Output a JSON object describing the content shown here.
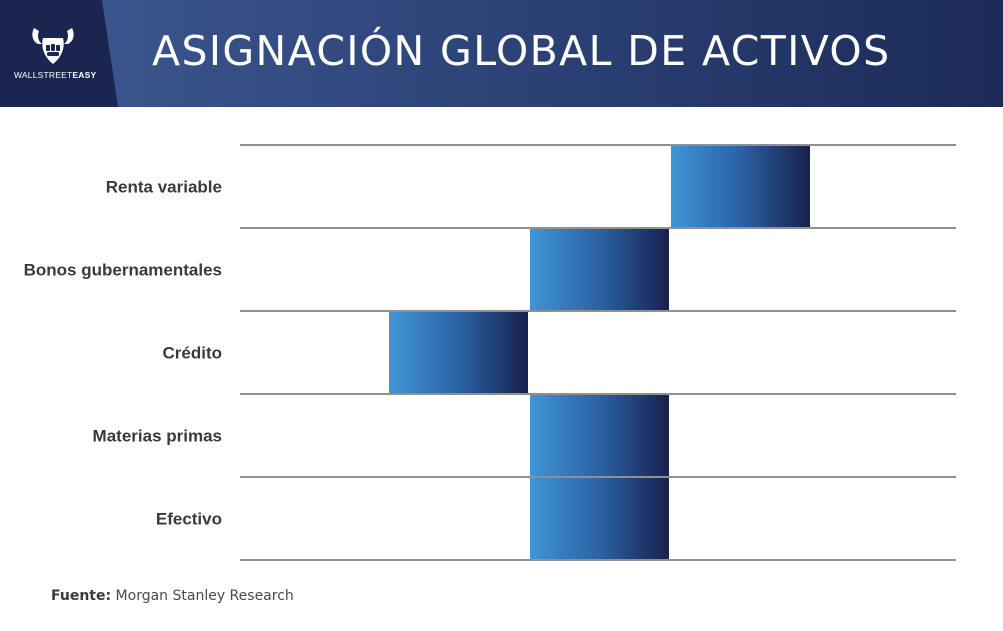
{
  "header": {
    "title": "ASIGNACIÓN GLOBAL DE ACTIVOS",
    "logo_text_regular": "WALLSTREET",
    "logo_text_bold": "EASY",
    "logo_icon": "bull-head-fist-icon"
  },
  "colors": {
    "header_left": "#3d5a92",
    "header_right": "#1c2b57",
    "logo_panel": "#1a2550",
    "bar_light": "#3f95d6",
    "bar_dark": "#17214d",
    "gridline": "#6b6b6b",
    "label_text": "#3a3a3a"
  },
  "chart_data": {
    "type": "bar",
    "orientation": "horizontal",
    "categories": [
      "Renta variable",
      "Bonos gubernamentales",
      "Crédito",
      "Materias primas",
      "Efectivo"
    ],
    "values": [
      1,
      0,
      -1,
      0,
      0
    ],
    "scale_positions": [
      "-2",
      "-1",
      "0",
      "+1",
      "+2"
    ],
    "title": "ASIGNACIÓN GLOBAL DE ACTIVOS",
    "xlabel": "",
    "ylabel": "",
    "grid": "horizontal row separators",
    "legend": "none"
  },
  "footer": {
    "source_label": "Fuente:",
    "source_text": "Morgan Stanley Research"
  }
}
